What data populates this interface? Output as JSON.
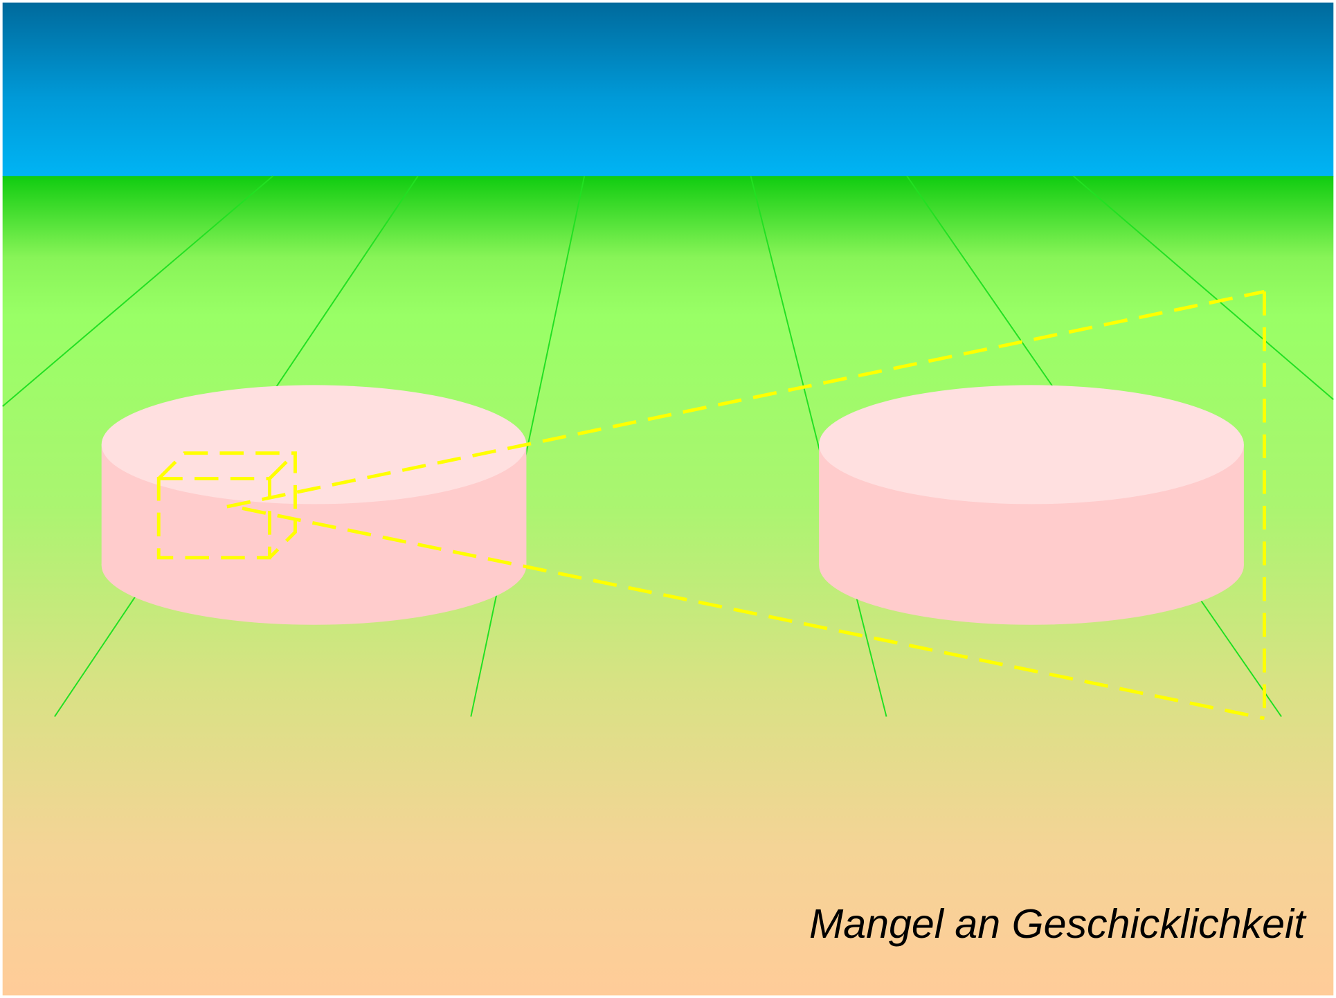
{
  "caption": "Mangel an Geschicklichkeit"
}
